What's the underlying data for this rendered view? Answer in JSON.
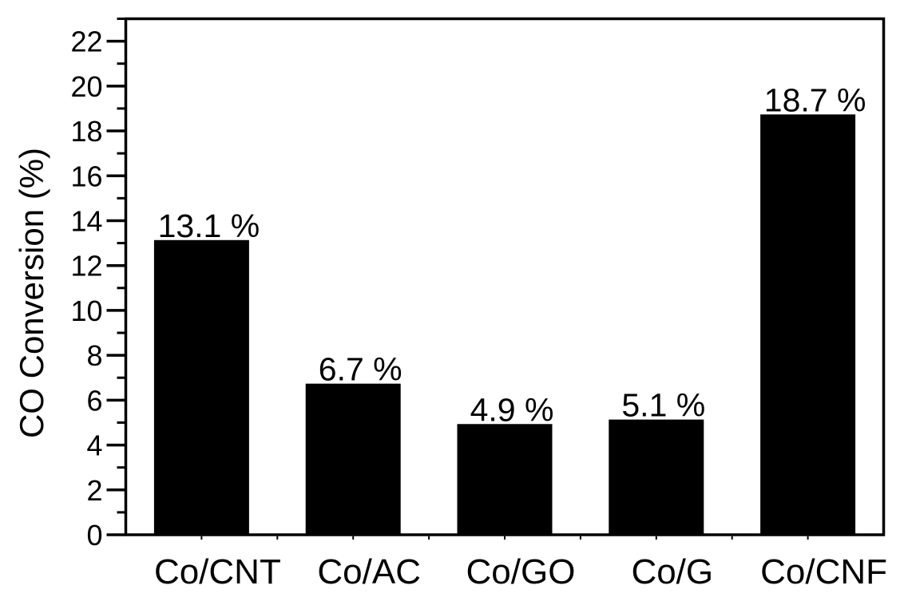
{
  "chart_data": {
    "type": "bar",
    "title": "",
    "xlabel": "",
    "ylabel": "CO Conversion (%)",
    "categories": [
      "Co/CNT",
      "Co/AC",
      "Co/GO",
      "Co/G",
      "Co/CNF"
    ],
    "values": [
      13.1,
      6.7,
      4.9,
      5.1,
      18.7
    ],
    "data_labels": [
      "13.1 %",
      "6.7 %",
      "4.9 %",
      "5.1 %",
      "18.7 %"
    ],
    "ylim": [
      0,
      23
    ],
    "y_major_ticks": [
      0,
      2,
      4,
      6,
      8,
      10,
      12,
      14,
      16,
      18,
      20,
      22
    ],
    "y_minor_ticks": [
      1,
      3,
      5,
      7,
      9,
      11,
      13,
      15,
      17,
      19,
      21,
      23
    ],
    "grid": false,
    "legend": false,
    "bar_color": "#000000",
    "axis_color": "#000000",
    "text_color": "#000000",
    "background_color": "#ffffff"
  }
}
